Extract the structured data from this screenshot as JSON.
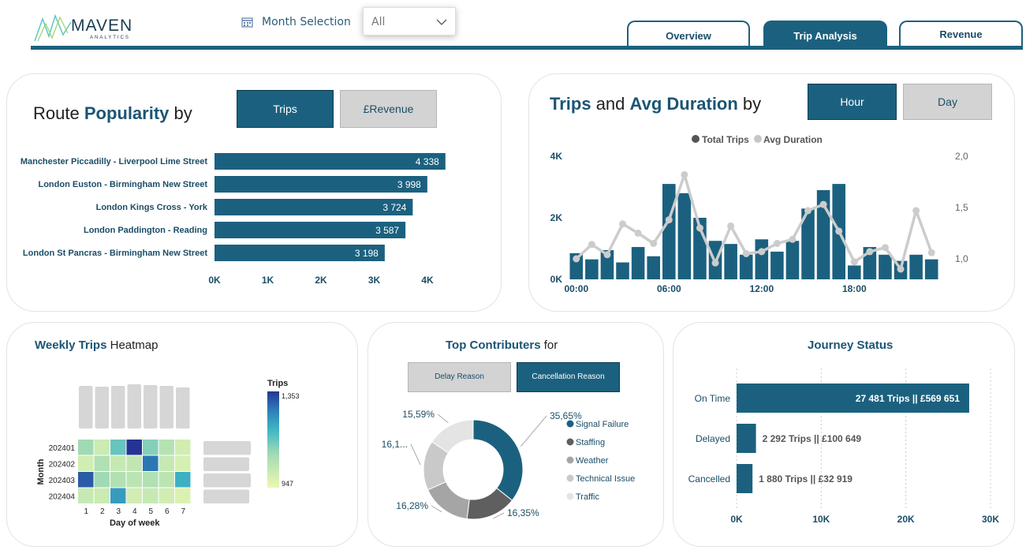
{
  "brand": {
    "name": "MAVEN",
    "sub": "ANALYTICS"
  },
  "filter": {
    "label": "Month Selection",
    "value": "All"
  },
  "tabs": [
    {
      "label": "Overview",
      "active": false
    },
    {
      "label": "Trip Analysis",
      "active": true
    },
    {
      "label": "Revenue",
      "active": false
    }
  ],
  "colors": {
    "primary": "#1b617f",
    "grey": "#d3d3d3",
    "accent_text": "#1b5573"
  },
  "route": {
    "title_a": "Route ",
    "title_b": "Popularity",
    "title_c": " by",
    "toggle_trips": "Trips",
    "toggle_revenue": "£Revenue",
    "chart_data": {
      "type": "bar",
      "categories": [
        "Manchester Piccadilly - Liverpool Lime Street",
        "London Euston - Birmingham New Street",
        "London Kings Cross - York",
        "London Paddington - Reading",
        "London St Pancras - Birmingham New Street"
      ],
      "values": [
        4338,
        3998,
        3724,
        3587,
        3198
      ],
      "value_labels": [
        "4 338",
        "3 998",
        "3 724",
        "3 587",
        "3 198"
      ],
      "xticks": [
        "0K",
        "1K",
        "2K",
        "3K",
        "4K"
      ],
      "xlim": [
        0,
        4000
      ]
    }
  },
  "trips": {
    "title_a": "Trips",
    "title_b": " and ",
    "title_c": "Avg Duration",
    "title_d": " by",
    "toggle_hour": "Hour",
    "toggle_day": "Day",
    "legend": [
      "Total Trips",
      "Avg Duration"
    ],
    "chart_data": {
      "type": "bar+line",
      "hours": [
        0,
        1,
        2,
        3,
        4,
        5,
        6,
        7,
        8,
        9,
        10,
        11,
        12,
        13,
        14,
        15,
        16,
        17,
        18,
        19,
        20,
        21,
        22,
        23
      ],
      "trips": [
        850,
        650,
        950,
        550,
        1050,
        750,
        3100,
        2800,
        2000,
        1250,
        1150,
        800,
        1300,
        900,
        1250,
        2300,
        2900,
        3100,
        450,
        1050,
        800,
        600,
        800,
        650
      ],
      "avg_duration": [
        1.0,
        1.14,
        1.04,
        1.34,
        1.25,
        1.15,
        1.38,
        1.82,
        1.3,
        0.96,
        1.32,
        1.05,
        1.07,
        1.15,
        1.19,
        1.47,
        1.53,
        1.27,
        0.97,
        1.07,
        1.11,
        0.9,
        1.47,
        1.06
      ],
      "xticks": [
        "00:00",
        "06:00",
        "12:00",
        "18:00"
      ],
      "yticks_left": [
        "0K",
        "2K",
        "4K"
      ],
      "yticks_right": [
        "1,0",
        "1,5",
        "2,0"
      ],
      "ylim_left": [
        0,
        4000
      ],
      "ylim_right": [
        0.8,
        2.0
      ]
    }
  },
  "heatmap": {
    "title_a": "Weekly Trips",
    "title_b": " Heatmap",
    "legend_title": "Trips",
    "legend_max": "1,353",
    "legend_min": "947",
    "ylabel": "Month",
    "xlabel": "Day of week",
    "chart_data": {
      "type": "heatmap",
      "rows": [
        "202401",
        "202402",
        "202403",
        "202404"
      ],
      "cols": [
        "1",
        "2",
        "3",
        "4",
        "5",
        "6",
        "7"
      ],
      "values": [
        [
          1090,
          1010,
          1150,
          1353,
          1120,
          1050,
          1000
        ],
        [
          1000,
          1060,
          1020,
          1030,
          1280,
          1020,
          990
        ],
        [
          1310,
          1090,
          1060,
          1040,
          1060,
          1040,
          1200
        ],
        [
          1020,
          1010,
          1230,
          1000,
          1020,
          1000,
          980
        ]
      ],
      "vmin": 947,
      "vmax": 1353
    }
  },
  "contrib": {
    "title_a": "Top Contributers",
    "title_b": " for",
    "toggle_delay": "Delay Reason",
    "toggle_cancel": "Cancellation Reason",
    "chart_data": {
      "type": "pie",
      "labels": [
        "Signal Failure",
        "Staffing",
        "Weather",
        "Technical Issue",
        "Traffic"
      ],
      "values": [
        35.65,
        16.35,
        16.28,
        16.13,
        15.59
      ],
      "value_labels": [
        "35,65%",
        "16,35%",
        "16,28%",
        "16,1...",
        "15,59%"
      ],
      "colors": [
        "#1b617f",
        "#5f5f5f",
        "#a5a5a5",
        "#c9c9c9",
        "#e4e4e4"
      ]
    }
  },
  "journey": {
    "title": "Journey Status",
    "chart_data": {
      "type": "bar",
      "categories": [
        "On Time",
        "Delayed",
        "Cancelled"
      ],
      "values": [
        27481,
        2292,
        1880
      ],
      "value_labels": [
        "27 481 Trips || £569 651",
        "2 292 Trips || £100 649",
        "1 880 Trips || £32 919"
      ],
      "xticks": [
        "0K",
        "10K",
        "20K",
        "30K"
      ],
      "xlim": [
        0,
        30000
      ]
    }
  }
}
